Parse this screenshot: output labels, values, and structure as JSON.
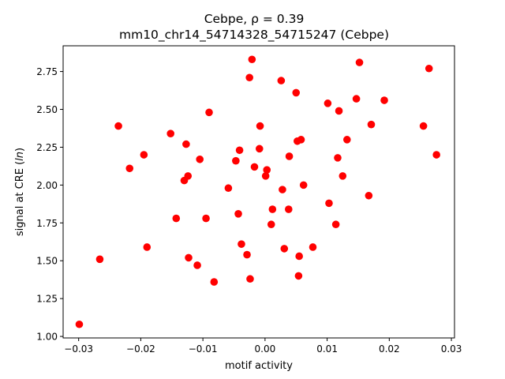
{
  "chart_data": {
    "type": "scatter",
    "title_line1": "Cebpe, ρ = 0.39",
    "title_line2": "mm10_chr14_54714328_54715247 (Cebpe)",
    "xlabel": "motif activity",
    "ylabel": "signal at CRE (ln)",
    "xlim": [
      -0.0325,
      0.0305
    ],
    "ylim": [
      0.99,
      2.92
    ],
    "x_ticks": [
      -0.03,
      -0.02,
      -0.01,
      0.0,
      0.01,
      0.02,
      0.03
    ],
    "x_tick_labels": [
      "−0.03",
      "−0.02",
      "−0.01",
      "0.00",
      "0.01",
      "0.02",
      "0.03"
    ],
    "y_ticks": [
      1.0,
      1.25,
      1.5,
      1.75,
      2.0,
      2.25,
      2.5,
      2.75
    ],
    "y_tick_labels": [
      "1.00",
      "1.25",
      "1.50",
      "1.75",
      "2.00",
      "2.25",
      "2.50",
      "2.75"
    ],
    "grid": false,
    "marker_color": "#ff0000",
    "points": [
      {
        "x": -0.0299,
        "y": 1.08
      },
      {
        "x": -0.0266,
        "y": 1.51
      },
      {
        "x": -0.0236,
        "y": 2.39
      },
      {
        "x": -0.0218,
        "y": 2.11
      },
      {
        "x": -0.0195,
        "y": 2.2
      },
      {
        "x": -0.019,
        "y": 1.59
      },
      {
        "x": -0.0152,
        "y": 2.34
      },
      {
        "x": -0.0143,
        "y": 1.78
      },
      {
        "x": -0.013,
        "y": 2.03
      },
      {
        "x": -0.0127,
        "y": 2.27
      },
      {
        "x": -0.0124,
        "y": 2.06
      },
      {
        "x": -0.0123,
        "y": 1.52
      },
      {
        "x": -0.0109,
        "y": 1.47
      },
      {
        "x": -0.0105,
        "y": 2.17
      },
      {
        "x": -0.0095,
        "y": 1.78
      },
      {
        "x": -0.009,
        "y": 2.48
      },
      {
        "x": -0.0082,
        "y": 1.36
      },
      {
        "x": -0.0059,
        "y": 1.98
      },
      {
        "x": -0.0047,
        "y": 2.16
      },
      {
        "x": -0.0043,
        "y": 1.81
      },
      {
        "x": -0.0041,
        "y": 2.23
      },
      {
        "x": -0.0038,
        "y": 1.61
      },
      {
        "x": -0.0029,
        "y": 1.54
      },
      {
        "x": -0.0025,
        "y": 2.71
      },
      {
        "x": -0.0024,
        "y": 1.38
      },
      {
        "x": -0.0021,
        "y": 2.83
      },
      {
        "x": -0.0017,
        "y": 2.12
      },
      {
        "x": -0.0009,
        "y": 2.24
      },
      {
        "x": -0.0008,
        "y": 2.39
      },
      {
        "x": 0.0001,
        "y": 2.06
      },
      {
        "x": 0.0003,
        "y": 2.1
      },
      {
        "x": 0.001,
        "y": 1.74
      },
      {
        "x": 0.0012,
        "y": 1.84
      },
      {
        "x": 0.0026,
        "y": 2.69
      },
      {
        "x": 0.0028,
        "y": 1.97
      },
      {
        "x": 0.0031,
        "y": 1.58
      },
      {
        "x": 0.0038,
        "y": 1.84
      },
      {
        "x": 0.0039,
        "y": 2.19
      },
      {
        "x": 0.005,
        "y": 2.61
      },
      {
        "x": 0.0052,
        "y": 2.29
      },
      {
        "x": 0.0054,
        "y": 1.4
      },
      {
        "x": 0.0055,
        "y": 1.53
      },
      {
        "x": 0.0058,
        "y": 2.3
      },
      {
        "x": 0.0062,
        "y": 2.0
      },
      {
        "x": 0.0077,
        "y": 1.59
      },
      {
        "x": 0.0101,
        "y": 2.54
      },
      {
        "x": 0.0103,
        "y": 1.88
      },
      {
        "x": 0.0114,
        "y": 1.74
      },
      {
        "x": 0.0117,
        "y": 2.18
      },
      {
        "x": 0.0119,
        "y": 2.49
      },
      {
        "x": 0.0125,
        "y": 2.06
      },
      {
        "x": 0.0132,
        "y": 2.3
      },
      {
        "x": 0.0147,
        "y": 2.57
      },
      {
        "x": 0.0152,
        "y": 2.81
      },
      {
        "x": 0.0167,
        "y": 1.93
      },
      {
        "x": 0.0171,
        "y": 2.4
      },
      {
        "x": 0.0192,
        "y": 2.56
      },
      {
        "x": 0.0255,
        "y": 2.39
      },
      {
        "x": 0.0264,
        "y": 2.77
      },
      {
        "x": 0.0276,
        "y": 2.2
      }
    ]
  }
}
